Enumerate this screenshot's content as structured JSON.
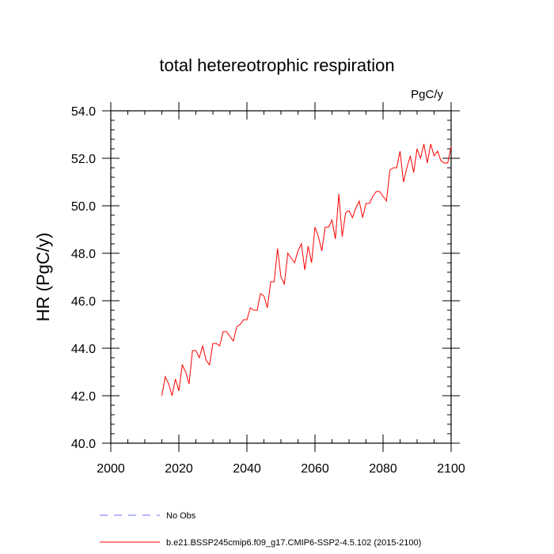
{
  "chart_data": {
    "type": "line",
    "title": "total hetereotrophic respiration",
    "units_label": "PgC/y",
    "ylabel": "HR  (PgC/y)",
    "xlabel": "",
    "xlim": [
      2000,
      2100
    ],
    "ylim": [
      40.0,
      54.0
    ],
    "xticks": [
      2000,
      2020,
      2040,
      2060,
      2080,
      2100
    ],
    "xtick_labels": [
      "2000",
      "2020",
      "2040",
      "2060",
      "2080",
      "2100"
    ],
    "yticks": [
      40.0,
      42.0,
      44.0,
      46.0,
      48.0,
      50.0,
      52.0,
      54.0
    ],
    "ytick_labels": [
      "40.0",
      "42.0",
      "44.0",
      "46.0",
      "48.0",
      "50.0",
      "52.0",
      "54.0"
    ],
    "grid": false,
    "legend_position": "bottom",
    "series": [
      {
        "name": "b.e21.BSSP245cmip6.f09_g17.CMIP6-SSP2-4.5.102 (2015-2100)",
        "color": "#ff0000",
        "style": "solid",
        "x": [
          2015,
          2016,
          2017,
          2018,
          2019,
          2020,
          2021,
          2022,
          2023,
          2024,
          2025,
          2026,
          2027,
          2028,
          2029,
          2030,
          2031,
          2032,
          2033,
          2034,
          2035,
          2036,
          2037,
          2038,
          2039,
          2040,
          2041,
          2042,
          2043,
          2044,
          2045,
          2046,
          2047,
          2048,
          2049,
          2050,
          2051,
          2052,
          2053,
          2054,
          2055,
          2056,
          2057,
          2058,
          2059,
          2060,
          2061,
          2062,
          2063,
          2064,
          2065,
          2066,
          2067,
          2068,
          2069,
          2070,
          2071,
          2072,
          2073,
          2074,
          2075,
          2076,
          2077,
          2078,
          2079,
          2080,
          2081,
          2082,
          2083,
          2084,
          2085,
          2086,
          2087,
          2088,
          2089,
          2090,
          2091,
          2092,
          2093,
          2094,
          2095,
          2096,
          2097,
          2098,
          2099,
          2100
        ],
        "y": [
          42.0,
          42.8,
          42.5,
          42.0,
          42.7,
          42.2,
          43.3,
          43.0,
          42.5,
          43.9,
          43.9,
          43.6,
          44.1,
          43.5,
          43.3,
          44.2,
          44.2,
          44.1,
          44.7,
          44.7,
          44.5,
          44.3,
          44.9,
          45.0,
          45.2,
          45.2,
          45.7,
          45.6,
          45.6,
          46.3,
          46.2,
          45.7,
          46.8,
          46.8,
          48.2,
          47.0,
          46.7,
          48.0,
          47.8,
          47.6,
          48.1,
          48.4,
          47.3,
          48.3,
          47.6,
          49.1,
          48.7,
          48.1,
          49.1,
          49.1,
          49.4,
          48.6,
          50.5,
          48.7,
          49.7,
          49.8,
          49.5,
          49.9,
          50.2,
          49.5,
          50.1,
          50.1,
          50.4,
          50.6,
          50.6,
          50.4,
          50.2,
          51.5,
          51.6,
          51.6,
          52.3,
          51.0,
          51.6,
          52.1,
          51.4,
          52.4,
          52.0,
          52.6,
          51.8,
          52.6,
          52.1,
          52.3,
          51.9,
          51.8,
          51.8,
          52.5
        ]
      },
      {
        "name": "No Obs",
        "color": "#6f6fff",
        "style": "dashed",
        "x": [],
        "y": []
      }
    ]
  }
}
